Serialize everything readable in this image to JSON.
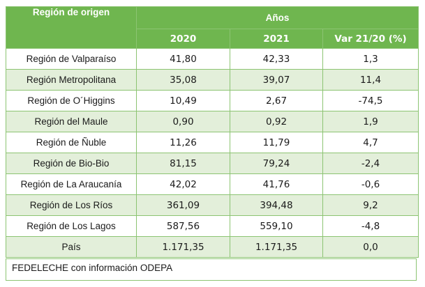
{
  "header": {
    "region_label": "Región de origen",
    "years_label": "Años",
    "col_2020": "2020",
    "col_2021": "2021",
    "col_var": "Var 21/20 (%)"
  },
  "rows": [
    {
      "region": "Región de Valparaíso",
      "v2020": "41,80",
      "v2021": "42,33",
      "var": "1,3"
    },
    {
      "region": "Región Metropolitana",
      "v2020": "35,08",
      "v2021": "39,07",
      "var": "11,4"
    },
    {
      "region": "Región de O´Higgins",
      "v2020": "10,49",
      "v2021": "2,67",
      "var": "-74,5"
    },
    {
      "region": "Región del Maule",
      "v2020": "0,90",
      "v2021": "0,92",
      "var": "1,9"
    },
    {
      "region": "Región de Ñuble",
      "v2020": "11,26",
      "v2021": "11,79",
      "var": "4,7"
    },
    {
      "region": "Región de Bio-Bio",
      "v2020": "81,15",
      "v2021": "79,24",
      "var": "-2,4"
    },
    {
      "region": "Región de La Araucanía",
      "v2020": "42,02",
      "v2021": "41,76",
      "var": "-0,6"
    },
    {
      "region": "Región de Los Ríos",
      "v2020": "361,09",
      "v2021": "394,48",
      "var": "9,2"
    },
    {
      "region": "Región de Los Lagos",
      "v2020": "587,56",
      "v2021": "559,10",
      "var": "-4,8"
    },
    {
      "region": "País",
      "v2020": "1.171,35",
      "v2021": "1.171,35",
      "var": "0,0"
    }
  ],
  "footer": {
    "source": "FEDELECHE con información ODEPA"
  },
  "colors": {
    "header_green": "#6fb64f",
    "stripe": "#e3efda",
    "border": "#8cc472"
  }
}
